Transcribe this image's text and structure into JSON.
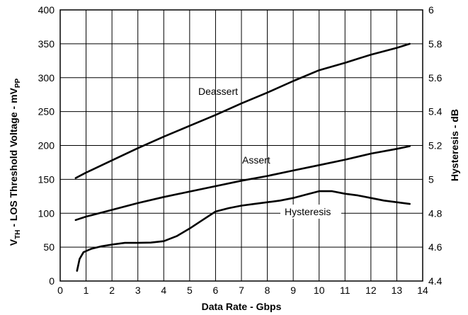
{
  "chart_data": {
    "type": "line",
    "xlabel": "Data Rate - Gbps",
    "ylabel_main": "V",
    "ylabel_sub": "TH",
    "ylabel_mid": " - LOS Threshold Voltage - mV",
    "ylabel_unit_sub": "PP",
    "y2label": "Hysteresis - dB",
    "xlim": [
      0,
      14
    ],
    "ylim": [
      0,
      400
    ],
    "y2lim": [
      4.4,
      6
    ],
    "grid": true,
    "x_ticks": [
      "0",
      "1",
      "2",
      "3",
      "4",
      "5",
      "6",
      "7",
      "8",
      "9",
      "10",
      "11",
      "12",
      "13",
      "14"
    ],
    "y_ticks": [
      "0",
      "50",
      "100",
      "150",
      "200",
      "250",
      "300",
      "350",
      "400"
    ],
    "y2_ticks": [
      "4.4",
      "4.6",
      "4.8",
      "5",
      "5.2",
      "5.4",
      "5.6",
      "5.8",
      "6"
    ],
    "series": [
      {
        "name": "Deassert",
        "axis": "left",
        "x": [
          0.6,
          1,
          2,
          3,
          4,
          5,
          6,
          7,
          8,
          9,
          10,
          11,
          12,
          13,
          13.5
        ],
        "y": [
          152,
          160,
          178,
          196,
          213,
          229,
          245,
          262,
          278,
          295,
          311,
          322,
          334,
          344,
          350
        ]
      },
      {
        "name": "Assert",
        "axis": "left",
        "x": [
          0.6,
          1,
          2,
          3,
          4,
          5,
          6,
          7,
          8,
          9,
          10,
          11,
          12,
          13,
          13.5
        ],
        "y": [
          90,
          95,
          105,
          115,
          124,
          132,
          140,
          148,
          155,
          163,
          171,
          179,
          188,
          195,
          199
        ]
      },
      {
        "name": "Hysteresis",
        "axis": "right",
        "x": [
          0.65,
          0.75,
          0.9,
          1.2,
          1.6,
          2,
          2.5,
          3,
          3.5,
          4,
          4.5,
          5,
          5.5,
          6,
          6.5,
          7,
          7.5,
          8,
          8.5,
          9,
          9.5,
          10,
          10.5,
          11,
          11.5,
          12,
          12.5,
          13,
          13.5
        ],
        "y": [
          4.46,
          4.53,
          4.57,
          4.59,
          4.605,
          4.615,
          4.625,
          4.625,
          4.627,
          4.635,
          4.665,
          4.71,
          4.76,
          4.81,
          4.83,
          4.845,
          4.855,
          4.865,
          4.875,
          4.89,
          4.91,
          4.93,
          4.93,
          4.915,
          4.905,
          4.89,
          4.875,
          4.865,
          4.855
        ]
      }
    ]
  }
}
